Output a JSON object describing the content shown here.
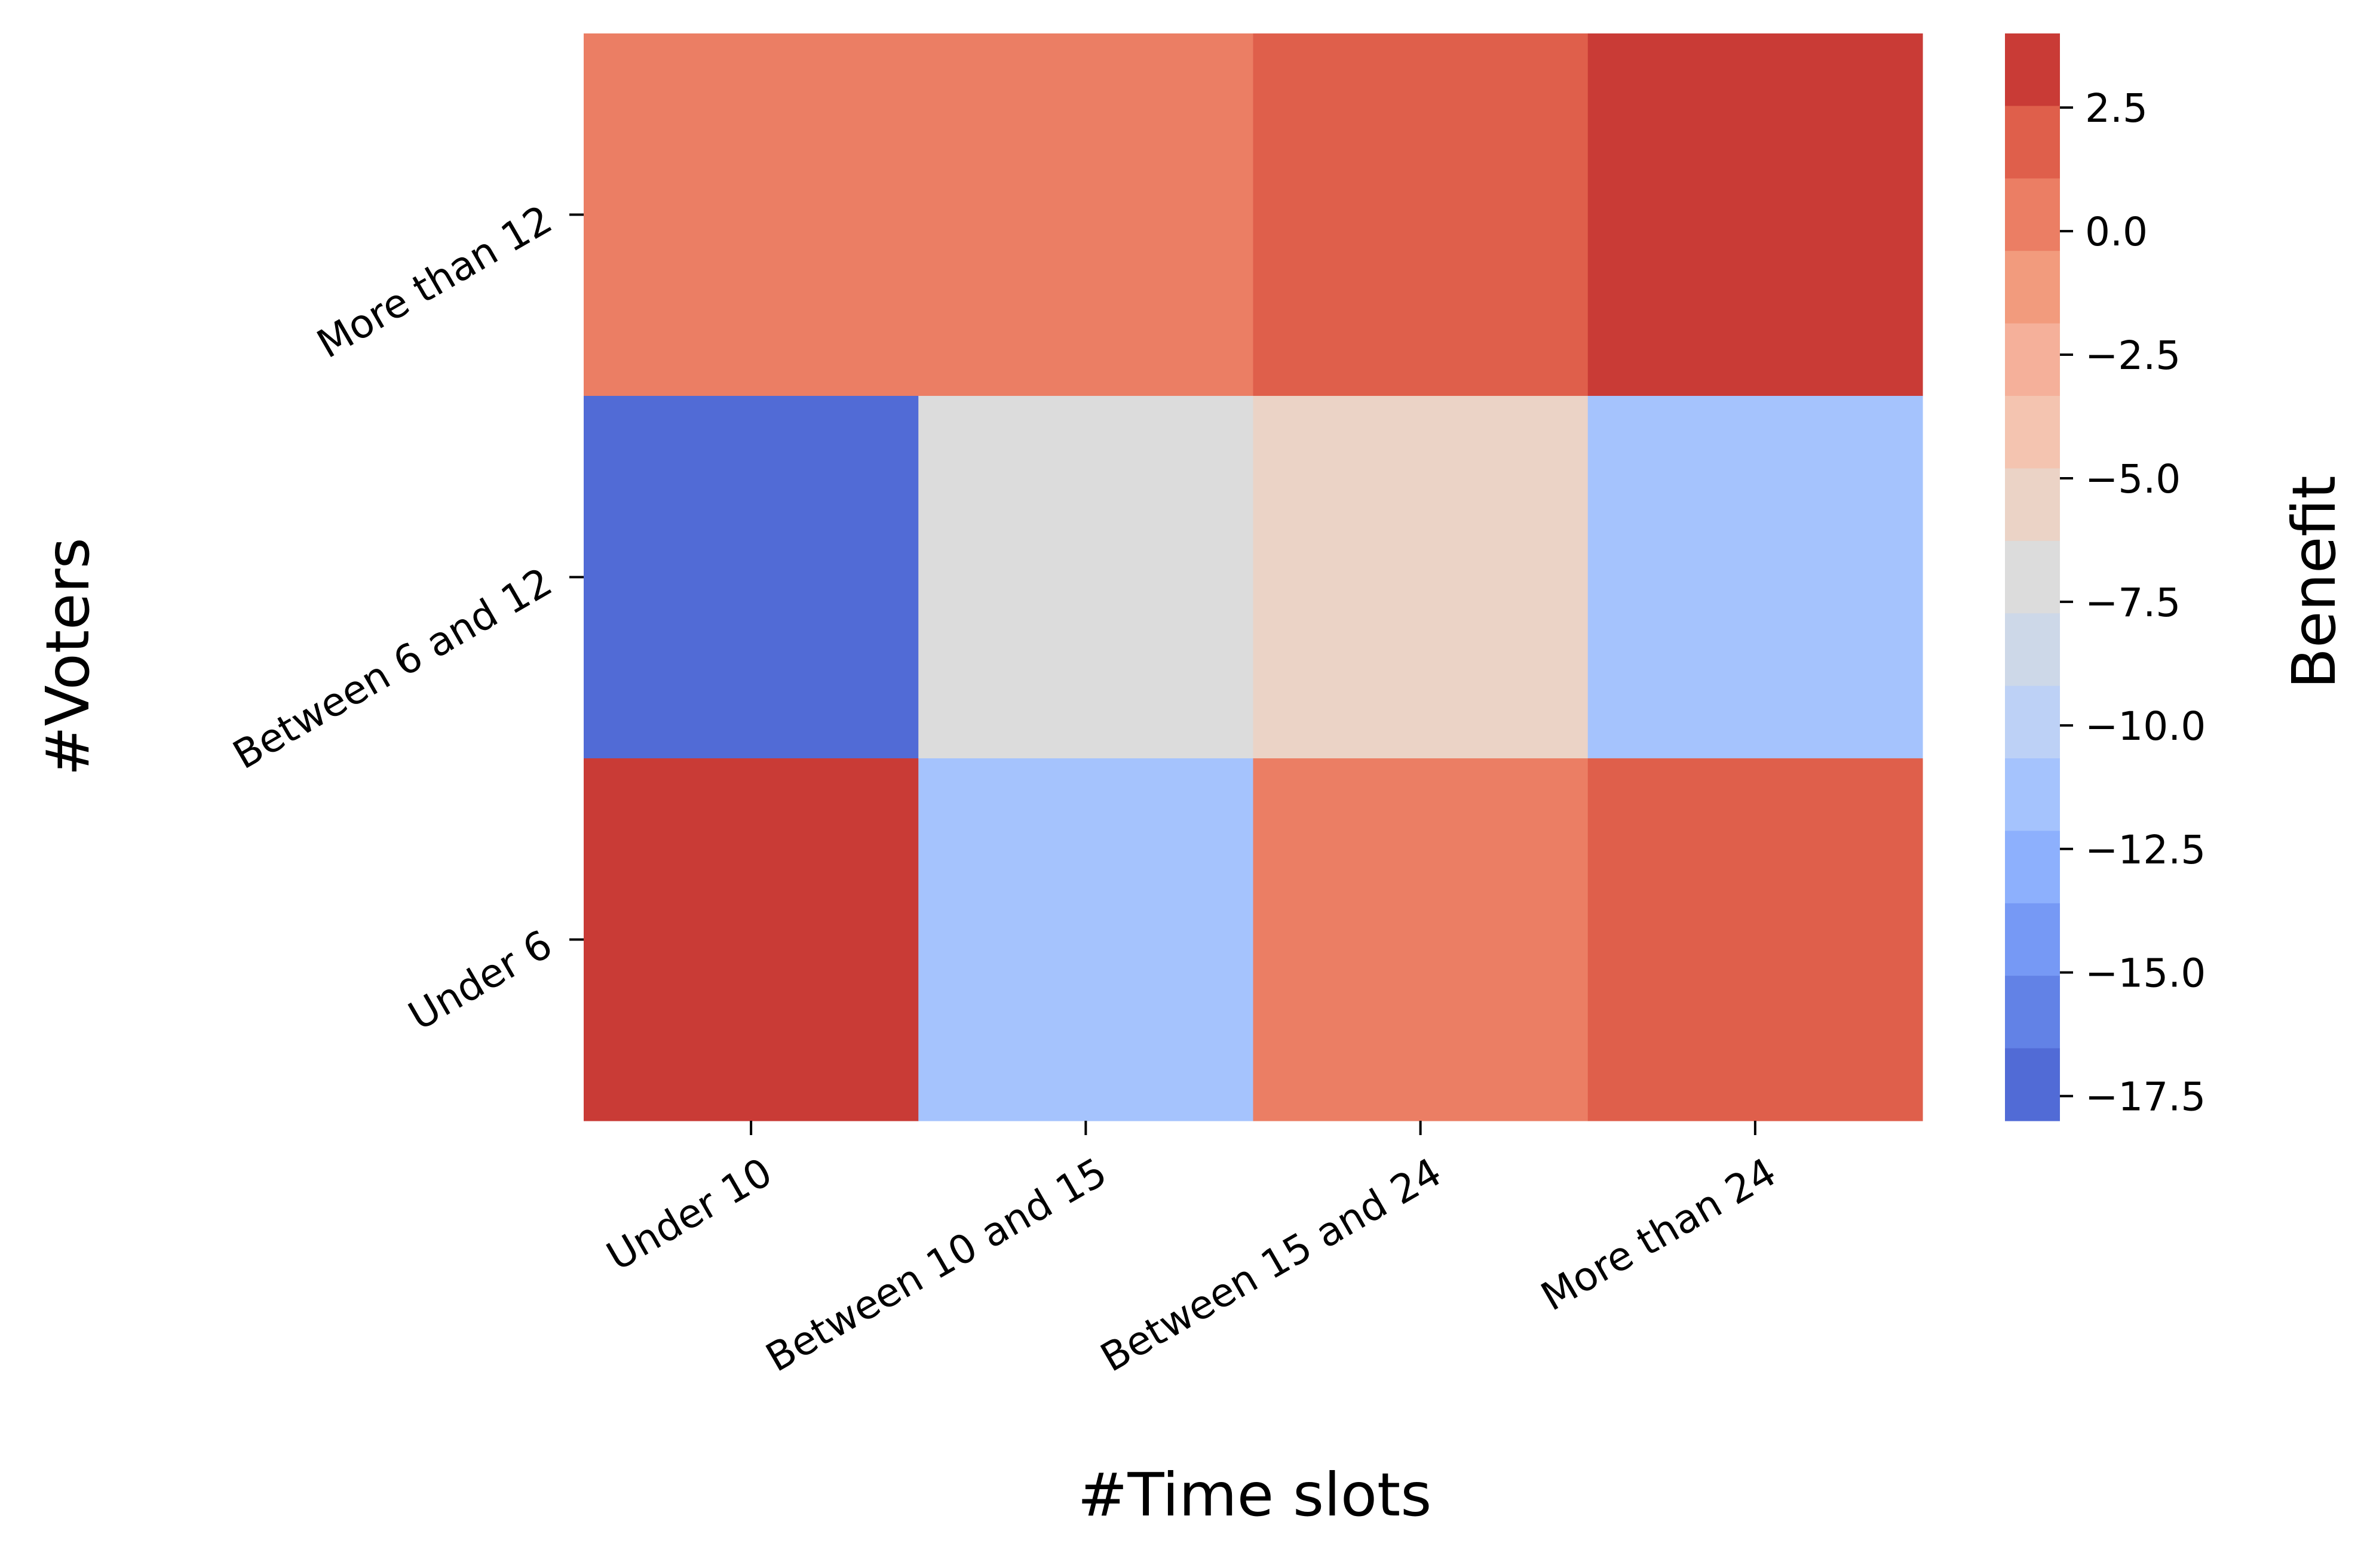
{
  "chart_data": {
    "type": "heatmap",
    "xlabel": "#Time slots",
    "ylabel": "#Voters",
    "x_categories": [
      "Under 10",
      "Between 10 and 15",
      "Between 15 and 24",
      "More than 24"
    ],
    "y_categories": [
      "More than 12",
      "Between 6 and 12",
      "Under 6"
    ],
    "values": [
      [
        0.5,
        0.5,
        2.0,
        3.5
      ],
      [
        -16.8,
        -7.0,
        -5.5,
        -11.2
      ],
      [
        3.5,
        -11.2,
        0.5,
        2.0
      ]
    ],
    "colorbar": {
      "label": "Benefit",
      "range": [
        -18.0,
        4.0
      ],
      "ticks": [
        2.5,
        0.0,
        -2.5,
        -5.0,
        -7.5,
        -10.0,
        -12.5,
        -15.0,
        -17.5
      ],
      "tick_labels": [
        "2.5",
        "0.0",
        "−2.5",
        "−5.0",
        "−7.5",
        "−10.0",
        "−12.5",
        "−15.0",
        "−17.5"
      ],
      "levels": [
        "#c93b36",
        "#df5f4b",
        "#eb7e64",
        "#f29b7d",
        "#f5b09a",
        "#f4c4b0",
        "#ebd3c6",
        "#dcdcdc",
        "#cdd8e8",
        "#bdd1f6",
        "#a5c3fd",
        "#8db0fd",
        "#7699f5",
        "#6282e6",
        "#516bd6"
      ]
    }
  }
}
